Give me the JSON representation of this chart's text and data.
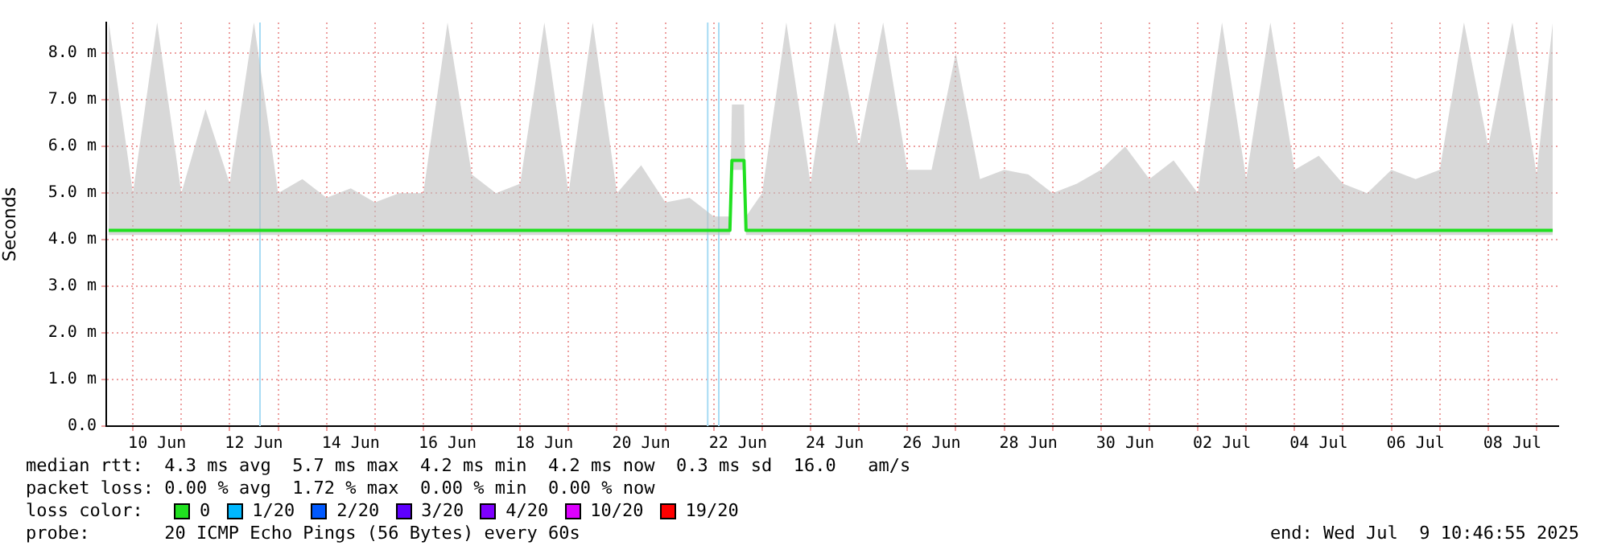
{
  "chart_data": {
    "type": "line",
    "ylabel": "Seconds",
    "legend_title": "loss color:",
    "legend": "bottom",
    "grid": true,
    "marker": "none",
    "line_style": "solid",
    "xlim": [
      "2025-06-09T10:46",
      "2025-07-09T10:46"
    ],
    "xticks": [
      {
        "value": "2025-06-10",
        "label": null
      },
      {
        "value": "2025-06-10T12:00",
        "label": "10 Jun"
      },
      {
        "value": "2025-06-11",
        "label": null
      },
      {
        "value": "2025-06-12",
        "label": null
      },
      {
        "value": "2025-06-12T12:00",
        "label": "12 Jun"
      },
      {
        "value": "2025-06-13",
        "label": null
      },
      {
        "value": "2025-06-14",
        "label": null
      },
      {
        "value": "2025-06-14T12:00",
        "label": "14 Jun"
      },
      {
        "value": "2025-06-15",
        "label": null
      },
      {
        "value": "2025-06-16",
        "label": null
      },
      {
        "value": "2025-06-16T12:00",
        "label": "16 Jun"
      },
      {
        "value": "2025-06-17",
        "label": null
      },
      {
        "value": "2025-06-18",
        "label": null
      },
      {
        "value": "2025-06-18T12:00",
        "label": "18 Jun"
      },
      {
        "value": "2025-06-19",
        "label": null
      },
      {
        "value": "2025-06-20",
        "label": null
      },
      {
        "value": "2025-06-20T12:00",
        "label": "20 Jun"
      },
      {
        "value": "2025-06-21",
        "label": null
      },
      {
        "value": "2025-06-22",
        "label": null
      },
      {
        "value": "2025-06-22T12:00",
        "label": "22 Jun"
      },
      {
        "value": "2025-06-23",
        "label": null
      },
      {
        "value": "2025-06-24",
        "label": null
      },
      {
        "value": "2025-06-24T12:00",
        "label": "24 Jun"
      },
      {
        "value": "2025-06-25",
        "label": null
      },
      {
        "value": "2025-06-26",
        "label": null
      },
      {
        "value": "2025-06-26T12:00",
        "label": "26 Jun"
      },
      {
        "value": "2025-06-27",
        "label": null
      },
      {
        "value": "2025-06-28",
        "label": null
      },
      {
        "value": "2025-06-28T12:00",
        "label": "28 Jun"
      },
      {
        "value": "2025-06-29",
        "label": null
      },
      {
        "value": "2025-06-30",
        "label": null
      },
      {
        "value": "2025-06-30T12:00",
        "label": "30 Jun"
      },
      {
        "value": "2025-07-01",
        "label": null
      },
      {
        "value": "2025-07-02",
        "label": null
      },
      {
        "value": "2025-07-02T12:00",
        "label": "02 Jul"
      },
      {
        "value": "2025-07-03",
        "label": null
      },
      {
        "value": "2025-07-04",
        "label": null
      },
      {
        "value": "2025-07-04T12:00",
        "label": "04 Jul"
      },
      {
        "value": "2025-07-05",
        "label": null
      },
      {
        "value": "2025-07-06",
        "label": null
      },
      {
        "value": "2025-07-06T12:00",
        "label": "06 Jul"
      },
      {
        "value": "2025-07-07",
        "label": null
      },
      {
        "value": "2025-07-08",
        "label": null
      },
      {
        "value": "2025-07-08T12:00",
        "label": "08 Jul"
      },
      {
        "value": "2025-07-09",
        "label": null
      }
    ],
    "ylim": [
      0,
      8.66
    ],
    "yticks": [
      {
        "value": 0,
        "label": "0.0"
      },
      {
        "value": 1,
        "label": "1.0 m"
      },
      {
        "value": 2,
        "label": "2.0 m"
      },
      {
        "value": 3,
        "label": "3.0 m"
      },
      {
        "value": 4,
        "label": "4.0 m"
      },
      {
        "value": 5,
        "label": "5.0 m"
      },
      {
        "value": 6,
        "label": "6.0 m"
      },
      {
        "value": 7,
        "label": "7.0 m"
      },
      {
        "value": 8,
        "label": "8.0 m"
      }
    ],
    "x": [
      "2025-06-09T12:00",
      "2025-06-10",
      "2025-06-10T12:00",
      "2025-06-11",
      "2025-06-11T12:00",
      "2025-06-12",
      "2025-06-12T12:00",
      "2025-06-13",
      "2025-06-13T12:00",
      "2025-06-14",
      "2025-06-14T12:00",
      "2025-06-15",
      "2025-06-15T12:00",
      "2025-06-16",
      "2025-06-16T12:00",
      "2025-06-17",
      "2025-06-17T12:00",
      "2025-06-18",
      "2025-06-18T12:00",
      "2025-06-19",
      "2025-06-19T12:00",
      "2025-06-20",
      "2025-06-20T12:00",
      "2025-06-21",
      "2025-06-21T12:00",
      "2025-06-22",
      "2025-06-22T08:00",
      "2025-06-22T09:00",
      "2025-06-22T15:00",
      "2025-06-22T16:00",
      "2025-06-23",
      "2025-06-23T12:00",
      "2025-06-24",
      "2025-06-24T12:00",
      "2025-06-25",
      "2025-06-25T12:00",
      "2025-06-26",
      "2025-06-26T12:00",
      "2025-06-27",
      "2025-06-27T12:00",
      "2025-06-28",
      "2025-06-28T12:00",
      "2025-06-29",
      "2025-06-29T12:00",
      "2025-06-30",
      "2025-06-30T12:00",
      "2025-07-01",
      "2025-07-01T12:00",
      "2025-07-02",
      "2025-07-02T12:00",
      "2025-07-03",
      "2025-07-03T12:00",
      "2025-07-04",
      "2025-07-04T12:00",
      "2025-07-05",
      "2025-07-05T12:00",
      "2025-07-06",
      "2025-07-06T12:00",
      "2025-07-07",
      "2025-07-07T12:00",
      "2025-07-08",
      "2025-07-08T12:00",
      "2025-07-09",
      "2025-07-09T08:00"
    ],
    "series": [
      {
        "name": "0",
        "color": "#20e020",
        "values": [
          4.2,
          4.2,
          4.2,
          4.2,
          4.2,
          4.2,
          4.2,
          4.2,
          4.2,
          4.2,
          4.2,
          4.2,
          4.2,
          4.2,
          4.2,
          4.2,
          4.2,
          4.2,
          4.2,
          4.2,
          4.2,
          4.2,
          4.2,
          4.2,
          4.2,
          4.2,
          4.2,
          5.7,
          5.7,
          4.2,
          4.2,
          4.2,
          4.2,
          4.2,
          4.2,
          4.2,
          4.2,
          4.2,
          4.2,
          4.2,
          4.2,
          4.2,
          4.2,
          4.2,
          4.2,
          4.2,
          4.2,
          4.2,
          4.2,
          4.2,
          4.2,
          4.2,
          4.2,
          4.2,
          4.2,
          4.2,
          4.2,
          4.2,
          4.2,
          4.2,
          4.2,
          4.2,
          4.2,
          4.2
        ],
        "lower": [
          4.1,
          4.1,
          4.1,
          4.1,
          4.1,
          4.1,
          4.1,
          4.1,
          4.1,
          4.1,
          4.1,
          4.1,
          4.1,
          4.1,
          4.1,
          4.1,
          4.1,
          4.1,
          4.1,
          4.1,
          4.1,
          4.1,
          4.1,
          4.1,
          4.1,
          4.1,
          4.1,
          5.5,
          5.5,
          4.1,
          4.1,
          4.1,
          4.1,
          4.1,
          4.1,
          4.1,
          4.1,
          4.1,
          4.1,
          4.1,
          4.1,
          4.1,
          4.1,
          4.1,
          4.1,
          4.1,
          4.1,
          4.1,
          4.1,
          4.1,
          4.1,
          4.1,
          4.1,
          4.1,
          4.1,
          4.1,
          4.1,
          4.1,
          4.1,
          4.1,
          4.1,
          4.1,
          4.1,
          4.1
        ],
        "upper": [
          8.66,
          5.0,
          8.66,
          5.0,
          6.8,
          5.2,
          8.66,
          5.0,
          5.3,
          4.9,
          5.1,
          4.8,
          5.0,
          5.0,
          8.66,
          5.4,
          5.0,
          5.2,
          8.66,
          5.0,
          8.66,
          5.0,
          5.6,
          4.8,
          4.9,
          4.5,
          4.5,
          6.9,
          6.9,
          4.5,
          5.0,
          8.66,
          5.2,
          8.66,
          6.0,
          8.66,
          5.5,
          5.5,
          8.0,
          5.3,
          5.5,
          5.4,
          5.0,
          5.2,
          5.5,
          6.0,
          5.3,
          5.7,
          5.0,
          8.66,
          5.3,
          8.66,
          5.5,
          5.8,
          5.2,
          5.0,
          5.5,
          5.3,
          5.5,
          8.66,
          6.0,
          8.66,
          5.4,
          8.66
        ]
      },
      {
        "name": "1/20",
        "color": "#00b8ff",
        "values": [
          null,
          null,
          null,
          null,
          null,
          null,
          null,
          null,
          null,
          null,
          null,
          null,
          null,
          null,
          null,
          null,
          null,
          null,
          null,
          null,
          null,
          null,
          null,
          null,
          null,
          null,
          null,
          null,
          null,
          null,
          null,
          null,
          null,
          null,
          null,
          null,
          null,
          null,
          null,
          null,
          null,
          null,
          null,
          null,
          null,
          null,
          null,
          null,
          null,
          null,
          null,
          null,
          null,
          null,
          null,
          null,
          null,
          null,
          null,
          null,
          null,
          null,
          null,
          null
        ]
      },
      {
        "name": "2/20",
        "color": "#0059ff",
        "values": [
          null,
          null,
          null,
          null,
          null,
          null,
          null,
          null,
          null,
          null,
          null,
          null,
          null,
          null,
          null,
          null,
          null,
          null,
          null,
          null,
          null,
          null,
          null,
          null,
          null,
          null,
          null,
          null,
          null,
          null,
          null,
          null,
          null,
          null,
          null,
          null,
          null,
          null,
          null,
          null,
          null,
          null,
          null,
          null,
          null,
          null,
          null,
          null,
          null,
          null,
          null,
          null,
          null,
          null,
          null,
          null,
          null,
          null,
          null,
          null,
          null,
          null,
          null,
          null
        ]
      },
      {
        "name": "3/20",
        "color": "#5e00ff",
        "values": [
          null,
          null,
          null,
          null,
          null,
          null,
          null,
          null,
          null,
          null,
          null,
          null,
          null,
          null,
          null,
          null,
          null,
          null,
          null,
          null,
          null,
          null,
          null,
          null,
          null,
          null,
          null,
          null,
          null,
          null,
          null,
          null,
          null,
          null,
          null,
          null,
          null,
          null,
          null,
          null,
          null,
          null,
          null,
          null,
          null,
          null,
          null,
          null,
          null,
          null,
          null,
          null,
          null,
          null,
          null,
          null,
          null,
          null,
          null,
          null,
          null,
          null,
          null,
          null
        ]
      },
      {
        "name": "4/20",
        "color": "#7e00ff",
        "values": [
          null,
          null,
          null,
          null,
          null,
          null,
          null,
          null,
          null,
          null,
          null,
          null,
          null,
          null,
          null,
          null,
          null,
          null,
          null,
          null,
          null,
          null,
          null,
          null,
          null,
          null,
          null,
          null,
          null,
          null,
          null,
          null,
          null,
          null,
          null,
          null,
          null,
          null,
          null,
          null,
          null,
          null,
          null,
          null,
          null,
          null,
          null,
          null,
          null,
          null,
          null,
          null,
          null,
          null,
          null,
          null,
          null,
          null,
          null,
          null,
          null,
          null,
          null,
          null
        ]
      },
      {
        "name": "10/20",
        "color": "#dd00ff",
        "values": [
          null,
          null,
          null,
          null,
          null,
          null,
          null,
          null,
          null,
          null,
          null,
          null,
          null,
          null,
          null,
          null,
          null,
          null,
          null,
          null,
          null,
          null,
          null,
          null,
          null,
          null,
          null,
          null,
          null,
          null,
          null,
          null,
          null,
          null,
          null,
          null,
          null,
          null,
          null,
          null,
          null,
          null,
          null,
          null,
          null,
          null,
          null,
          null,
          null,
          null,
          null,
          null,
          null,
          null,
          null,
          null,
          null,
          null,
          null,
          null,
          null,
          null,
          null,
          null
        ]
      },
      {
        "name": "19/20",
        "color": "#ff0000",
        "values": [
          null,
          null,
          null,
          null,
          null,
          null,
          null,
          null,
          null,
          null,
          null,
          null,
          null,
          null,
          null,
          null,
          null,
          null,
          null,
          null,
          null,
          null,
          null,
          null,
          null,
          null,
          null,
          null,
          null,
          null,
          null,
          null,
          null,
          null,
          null,
          null,
          null,
          null,
          null,
          null,
          null,
          null,
          null,
          null,
          null,
          null,
          null,
          null,
          null,
          null,
          null,
          null,
          null,
          null,
          null,
          null,
          null,
          null,
          null,
          null,
          null,
          null,
          null,
          null
        ]
      }
    ],
    "ref_lines": [
      {
        "axis": "x",
        "value": "2025-06-12T15:00",
        "color": "#a8dcf4"
      },
      {
        "axis": "x",
        "value": "2025-06-21T21:00",
        "color": "#a8dcf4"
      },
      {
        "axis": "x",
        "value": "2025-06-22T02:30",
        "color": "#a8dcf4"
      }
    ],
    "annotations": [
      "median rtt:  4.3 ms avg  5.7 ms max  4.2 ms min  4.2 ms now  0.3 ms sd  16.0   am/s",
      "packet loss: 0.00 % avg  1.72 % max  0.00 % min  0.00 % now",
      "probe:       20 ICMP Echo Pings (56 Bytes) every 60s",
      "end: Wed Jul  9 10:46:55 2025"
    ]
  }
}
